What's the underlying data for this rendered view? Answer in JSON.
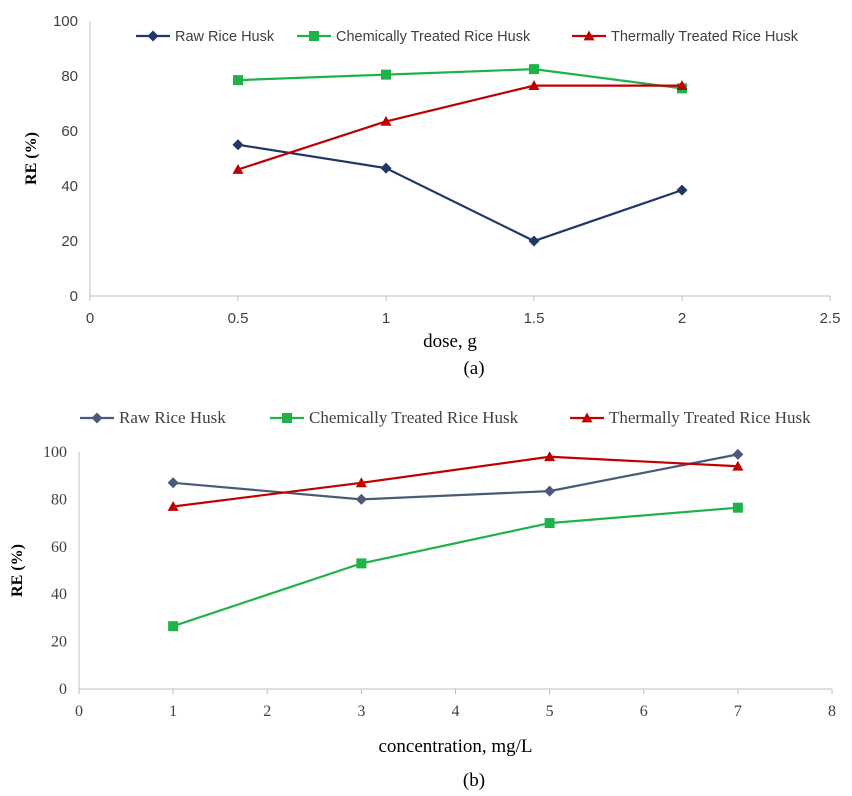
{
  "chart_data": [
    {
      "type": "line",
      "panel_label": "(a)",
      "xlabel": "dose, g",
      "ylabel": "RE (%)",
      "xlim": [
        0,
        2.5
      ],
      "ylim": [
        0,
        100
      ],
      "x_ticks": [
        "0",
        "0.5",
        "1",
        "1.5",
        "2",
        "2.5"
      ],
      "y_ticks": [
        "0",
        "20",
        "40",
        "60",
        "80",
        "100"
      ],
      "legend_position": "top",
      "x": [
        0.5,
        1,
        1.5,
        2
      ],
      "series": [
        {
          "name": "Raw Rice Husk",
          "values": [
            55,
            46.5,
            20,
            38.5
          ],
          "color": "#1f3864",
          "marker": "diamond"
        },
        {
          "name": "Chemically Treated Rice Husk",
          "values": [
            78.5,
            80.5,
            82.5,
            75.5
          ],
          "color": "#1fb24a",
          "marker": "square"
        },
        {
          "name": "Thermally Treated Rice Husk",
          "values": [
            46,
            63.5,
            76.5,
            76.5
          ],
          "color": "#c00000",
          "marker": "triangle"
        }
      ]
    },
    {
      "type": "line",
      "panel_label": "(b)",
      "xlabel": "concentration, mg/L",
      "ylabel": "RE (%)",
      "xlim": [
        0,
        8
      ],
      "ylim": [
        0,
        100
      ],
      "x_ticks": [
        "0",
        "1",
        "2",
        "3",
        "4",
        "5",
        "6",
        "7",
        "8"
      ],
      "y_ticks": [
        "0",
        "20",
        "40",
        "60",
        "80",
        "100"
      ],
      "legend_position": "top",
      "x": [
        1,
        3,
        5,
        7
      ],
      "series": [
        {
          "name": "Raw Rice Husk",
          "values": [
            87,
            80,
            83.5,
            99
          ],
          "color": "#4a5a7a",
          "marker": "diamond"
        },
        {
          "name": "Chemically Treated Rice Husk",
          "values": [
            26.5,
            53,
            70,
            76.5
          ],
          "color": "#1fb24a",
          "marker": "square"
        },
        {
          "name": "Thermally Treated Rice Husk",
          "values": [
            77,
            87,
            98,
            94
          ],
          "color": "#c00000",
          "marker": "triangle"
        }
      ]
    }
  ]
}
